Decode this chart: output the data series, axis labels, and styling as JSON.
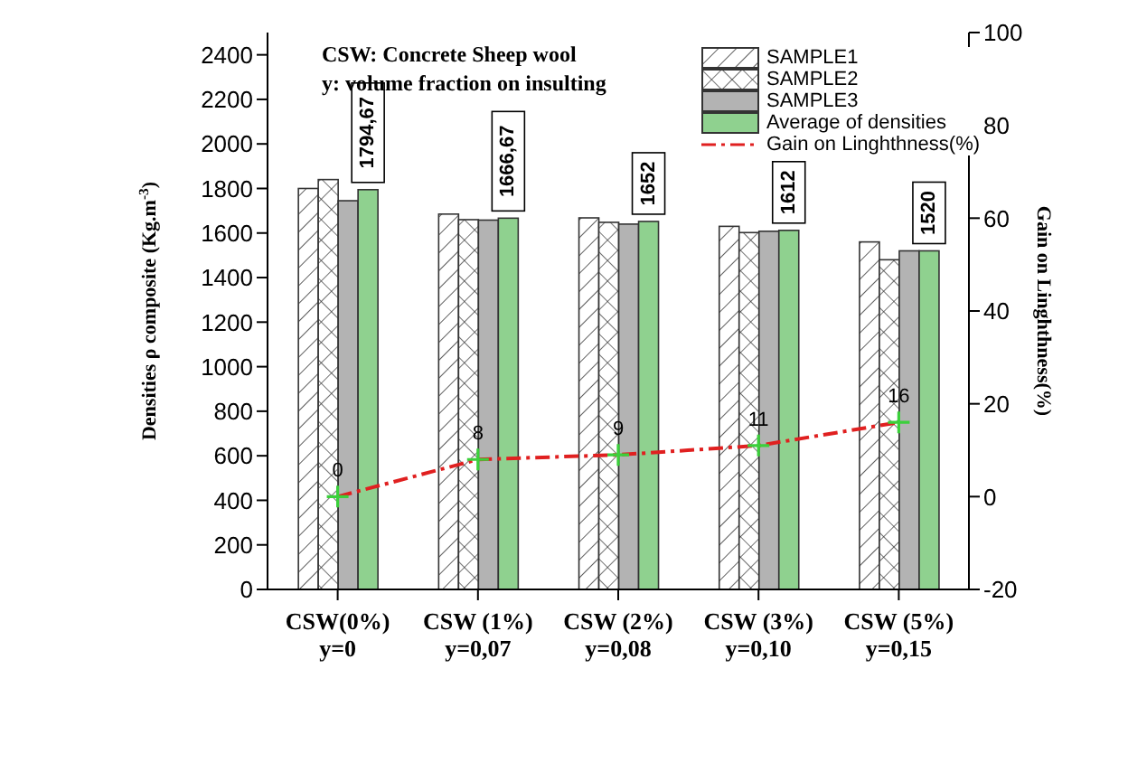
{
  "chart_data": {
    "type": "bar",
    "categories": [
      "CSW(0%)\ny=0",
      "CSW (1%)\ny=0,07",
      "CSW (2%)\ny=0,08",
      "CSW (3%)\ny=0,10",
      "CSW (5%)\ny=0,15"
    ],
    "ylabel": "Densities ρ composite (Kg.m$^{-3}$)",
    "y2label": "Gain on Linghthness(%)",
    "annotations": [
      "CSW: Concrete Sheep wool",
      "y: volume fraction on insulting"
    ],
    "series": [
      {
        "name": "SAMPLE1",
        "color": "#ffffff",
        "values": [
          1800,
          1685,
          1668,
          1630,
          1560
        ]
      },
      {
        "name": "SAMPLE2",
        "color": "#ffffff",
        "values": [
          1840,
          1660,
          1648,
          1602,
          1480
        ]
      },
      {
        "name": "SAMPLE3",
        "color": "#b3b3b3",
        "values": [
          1745,
          1658,
          1640,
          1608,
          1520
        ]
      },
      {
        "name": "Average of densities",
        "color": "#8fd18f",
        "values": [
          1794.67,
          1666.67,
          1652,
          1612,
          1520
        ],
        "value_labels": [
          "1794,67",
          "1666,67",
          "1652",
          "1612",
          "1520"
        ]
      },
      {
        "name": "Gain on Linghthness(%)",
        "type": "line",
        "axis": "y2",
        "color": "#e02020",
        "marker": "cross",
        "line_style": "dashed",
        "values": [
          0,
          8,
          9,
          11,
          16
        ],
        "value_labels": [
          "0",
          "8",
          "9",
          "11",
          "16"
        ]
      }
    ],
    "ylim": [
      0,
      2500
    ],
    "yticks": [
      0,
      200,
      400,
      600,
      800,
      1000,
      1200,
      1400,
      1600,
      1800,
      2000,
      2200,
      2400
    ],
    "y2lim": [
      -20,
      100
    ],
    "y2ticks": [
      -20,
      0,
      20,
      40,
      60,
      80,
      100
    ],
    "legend": "top right",
    "grid": false
  }
}
